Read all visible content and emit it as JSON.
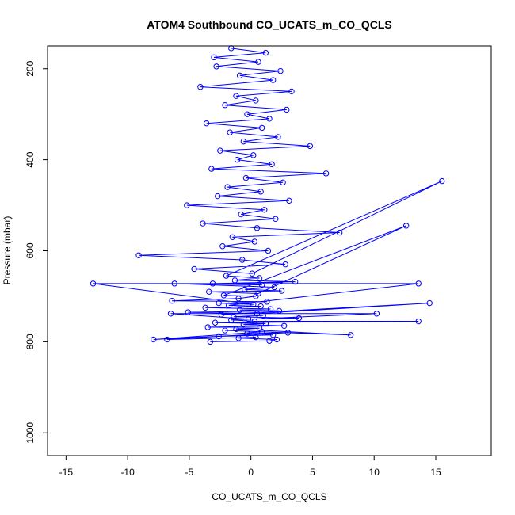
{
  "chart_data": {
    "type": "line",
    "title": "ATOM4 Southbound CO_UCATS_m_CO_QCLS",
    "xlabel": "CO_UCATS_m_CO_QCLS",
    "ylabel": "Pressure (mbar)",
    "xlim": [
      -16.5,
      19.5
    ],
    "ylim": [
      1050,
      150
    ],
    "y_reversed": true,
    "x_ticks": [
      -15,
      -10,
      -5,
      0,
      5,
      10,
      15
    ],
    "y_ticks": [
      200,
      400,
      600,
      800,
      1000
    ],
    "x_tick_labels": [
      "-15",
      "-10",
      "-5",
      "0",
      "5",
      "10",
      "15"
    ],
    "y_tick_labels": [
      "200",
      "400",
      "600",
      "800",
      "1000"
    ],
    "grid": false,
    "series_color": "#0000ff",
    "marker": "open-circle",
    "series": [
      {
        "x": [
          -1.6,
          1.2,
          -3.0,
          0.6,
          -2.8,
          2.4,
          -0.9,
          1.8,
          -4.1,
          3.3,
          -1.2,
          0.4,
          -2.1,
          2.9,
          -0.3,
          1.5,
          -3.6,
          0.9,
          -1.7,
          2.2,
          -0.6,
          4.8,
          -2.5,
          0.2,
          -1.1,
          1.7,
          -3.2,
          6.1,
          -0.4,
          2.6,
          -1.9,
          0.8,
          -2.7,
          3.1,
          -5.2,
          1.1,
          -0.8,
          2.0,
          -3.9,
          0.5,
          7.2,
          -1.5,
          0.3,
          -2.3,
          1.4,
          -9.1,
          -0.7,
          2.8,
          -4.6,
          0.1,
          15.5,
          -2.0,
          0.7,
          -1.3,
          3.6,
          -3.1,
          0.9,
          -6.2,
          1.9,
          -0.5,
          2.5,
          -3.4,
          0.6,
          12.6,
          -2.2,
          0.4,
          -1.0,
          -6.4,
          1.3,
          -2.6,
          0.2,
          -12.8,
          13.6,
          -1.8,
          0.8,
          -3.7,
          1.6,
          -0.9,
          2.3,
          -5.1,
          0.5,
          14.5,
          -2.4,
          1.0,
          -1.4,
          3.9,
          -0.2,
          -6.5,
          10.2,
          -1.6,
          0.3,
          13.6,
          -2.9,
          1.2,
          -0.6,
          2.7,
          -3.5,
          0.7,
          -1.2,
          8.1,
          -2.1,
          0.9,
          -7.9,
          3.0,
          -0.3,
          1.8,
          -2.6,
          -6.8,
          0.4,
          -1.0,
          2.1,
          1.5,
          -3.3
        ],
        "y": [
          155,
          165,
          175,
          185,
          195,
          205,
          215,
          225,
          240,
          250,
          260,
          270,
          280,
          290,
          300,
          310,
          320,
          330,
          340,
          350,
          360,
          370,
          380,
          390,
          400,
          410,
          420,
          430,
          440,
          450,
          460,
          470,
          480,
          490,
          500,
          510,
          520,
          530,
          540,
          550,
          560,
          570,
          580,
          590,
          600,
          610,
          620,
          630,
          640,
          650,
          447,
          655,
          660,
          665,
          668,
          672,
          675,
          672,
          680,
          685,
          688,
          690,
          694,
          545,
          698,
          700,
          705,
          710,
          712,
          715,
          718,
          672,
          672,
          720,
          722,
          725,
          728,
          730,
          732,
          735,
          738,
          715,
          740,
          742,
          745,
          748,
          750,
          738,
          738,
          752,
          755,
          755,
          758,
          760,
          762,
          765,
          768,
          770,
          772,
          785,
          775,
          778,
          795,
          780,
          782,
          785,
          788,
          795,
          790,
          792,
          795,
          798,
          800
        ]
      }
    ]
  }
}
